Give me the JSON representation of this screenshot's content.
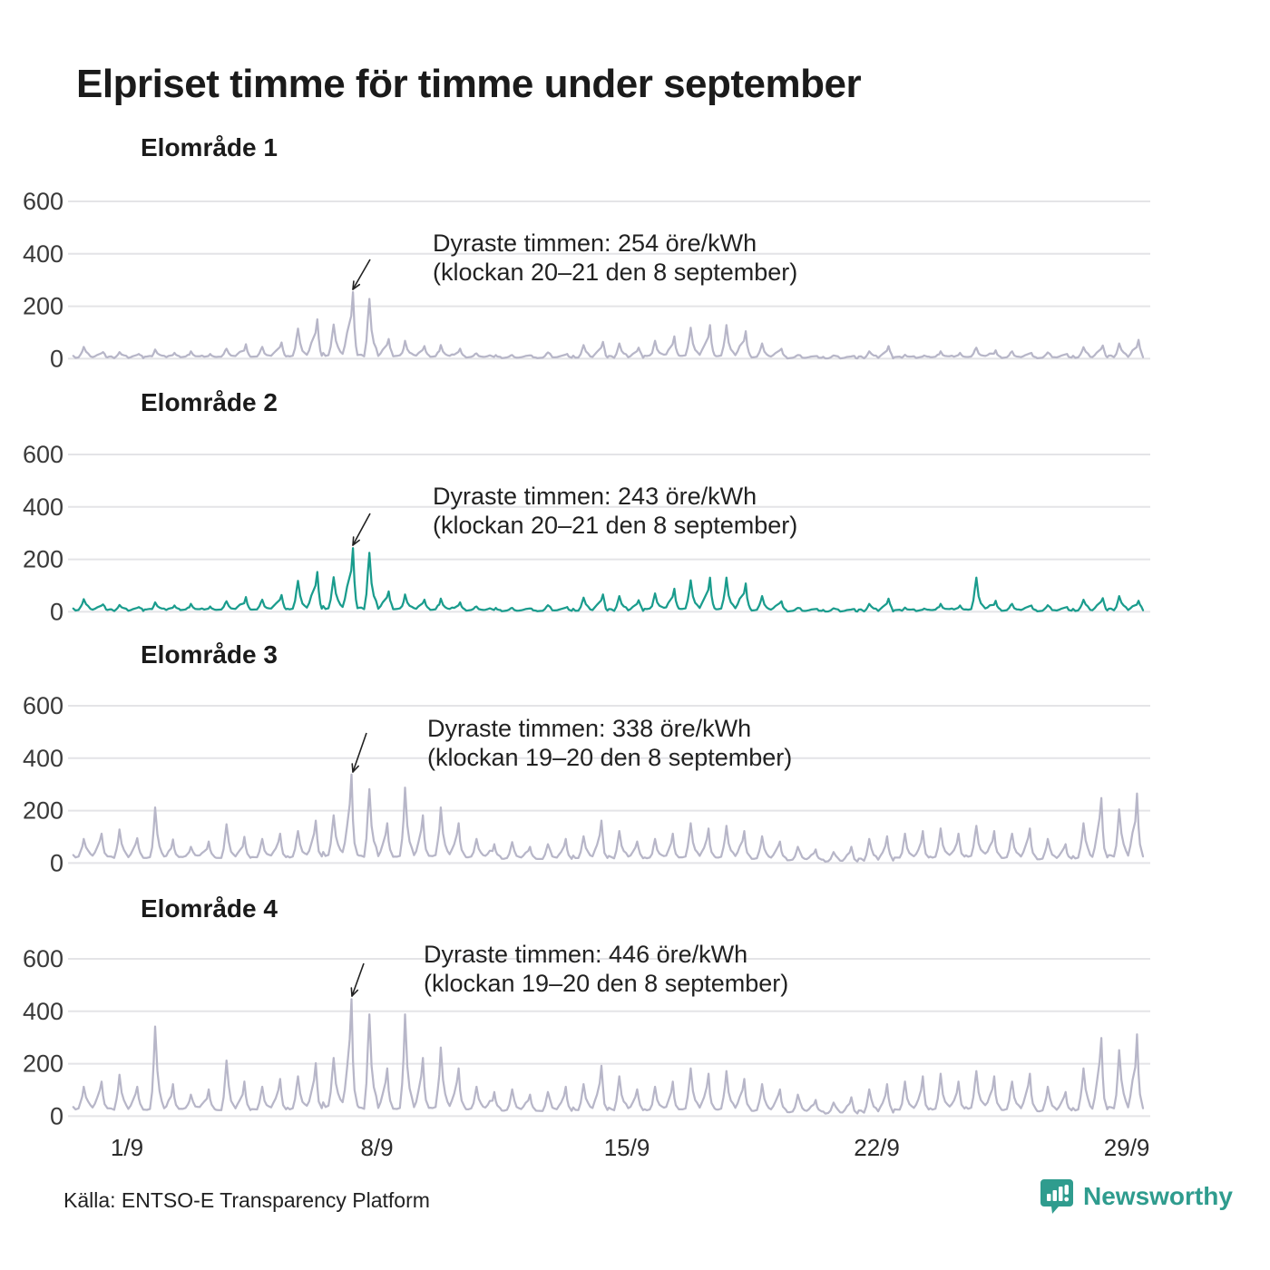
{
  "title": "Elpriset timme för timme under september",
  "source": "Källa: ENTSO-E Transparency Platform",
  "logo": {
    "text": "Newsworthy"
  },
  "colors": {
    "muted_series": "#b7b6c8",
    "accent_series": "#1a9c8d",
    "grid": "#e4e4e7",
    "text": "#1b1b1b",
    "annotation_arrow": "#222222",
    "brand_teal": "#2f9c8e"
  },
  "axis": {
    "y_ticks": [
      "600",
      "400",
      "200",
      "0"
    ],
    "y_max": 600,
    "x_ticks": [
      "1/9",
      "8/9",
      "15/9",
      "22/9",
      "29/9"
    ],
    "x_tick_days": [
      1,
      8,
      15,
      22,
      29
    ],
    "days_shown": 30,
    "unit": "öre/kWh"
  },
  "chart_data": [
    {
      "type": "line",
      "title": "Elområde 1",
      "unit": "öre/kWh",
      "series_color": "#b7b6c8",
      "ylim": [
        0,
        650
      ],
      "x_range": [
        "1/9",
        "30/9"
      ],
      "annotation": {
        "line1": "Dyraste timmen: 254 öre/kWh",
        "line2": "(klockan 20–21 den 8 september)",
        "peak_value": 254,
        "peak_day": 8,
        "peak_hour": "20–21",
        "peak_hour_pos": 20.5
      },
      "daily_base_am_pm": [
        [
          8,
          45,
          25
        ],
        [
          6,
          25,
          18
        ],
        [
          7,
          35,
          22
        ],
        [
          6,
          28,
          18
        ],
        [
          8,
          38,
          55
        ],
        [
          10,
          45,
          62
        ],
        [
          14,
          115,
          150
        ],
        [
          18,
          130,
          254
        ],
        [
          14,
          228,
          75
        ],
        [
          10,
          68,
          48
        ],
        [
          8,
          52,
          38
        ],
        [
          6,
          20,
          14
        ],
        [
          5,
          14,
          12
        ],
        [
          6,
          24,
          18
        ],
        [
          8,
          52,
          64
        ],
        [
          8,
          58,
          42
        ],
        [
          10,
          68,
          85
        ],
        [
          12,
          118,
          128
        ],
        [
          12,
          128,
          105
        ],
        [
          8,
          58,
          38
        ],
        [
          5,
          14,
          10
        ],
        [
          4,
          12,
          10
        ],
        [
          6,
          28,
          48
        ],
        [
          5,
          15,
          12
        ],
        [
          6,
          28,
          22
        ],
        [
          8,
          42,
          32
        ],
        [
          6,
          28,
          22
        ],
        [
          6,
          24,
          18
        ],
        [
          8,
          44,
          50
        ],
        [
          10,
          58,
          72
        ]
      ]
    },
    {
      "type": "line",
      "title": "Elområde 2",
      "unit": "öre/kWh",
      "series_color": "#1a9c8d",
      "ylim": [
        0,
        650
      ],
      "x_range": [
        "1/9",
        "30/9"
      ],
      "annotation": {
        "line1": "Dyraste timmen: 243 öre/kWh",
        "line2": "(klockan 20–21 den 8 september)",
        "peak_value": 243,
        "peak_day": 8,
        "peak_hour": "20–21",
        "peak_hour_pos": 20.5
      },
      "daily_base_am_pm": [
        [
          10,
          48,
          28
        ],
        [
          7,
          26,
          18
        ],
        [
          8,
          36,
          24
        ],
        [
          7,
          30,
          20
        ],
        [
          9,
          40,
          56
        ],
        [
          11,
          46,
          64
        ],
        [
          15,
          118,
          152
        ],
        [
          18,
          132,
          243
        ],
        [
          15,
          225,
          78
        ],
        [
          10,
          66,
          46
        ],
        [
          8,
          50,
          36
        ],
        [
          6,
          20,
          15
        ],
        [
          5,
          15,
          12
        ],
        [
          6,
          25,
          18
        ],
        [
          8,
          54,
          66
        ],
        [
          8,
          60,
          44
        ],
        [
          10,
          70,
          88
        ],
        [
          12,
          120,
          130
        ],
        [
          12,
          130,
          108
        ],
        [
          8,
          60,
          40
        ],
        [
          5,
          15,
          11
        ],
        [
          4,
          13,
          10
        ],
        [
          6,
          30,
          50
        ],
        [
          5,
          16,
          12
        ],
        [
          7,
          30,
          24
        ],
        [
          10,
          130,
          42
        ],
        [
          7,
          30,
          24
        ],
        [
          6,
          25,
          18
        ],
        [
          8,
          46,
          52
        ],
        [
          10,
          60,
          42
        ]
      ]
    },
    {
      "type": "line",
      "title": "Elområde 3",
      "unit": "öre/kWh",
      "series_color": "#b7b6c8",
      "ylim": [
        0,
        650
      ],
      "x_range": [
        "1/9",
        "30/9"
      ],
      "annotation": {
        "line1": "Dyraste timmen: 338 öre/kWh",
        "line2": "(klockan 19–20 den 8 september)",
        "peak_value": 338,
        "peak_day": 8,
        "peak_hour": "19–20",
        "peak_hour_pos": 19.5
      },
      "daily_base_am_pm": [
        [
          30,
          92,
          112
        ],
        [
          25,
          128,
          95
        ],
        [
          20,
          212,
          90
        ],
        [
          25,
          62,
          82
        ],
        [
          22,
          148,
          100
        ],
        [
          26,
          92,
          112
        ],
        [
          30,
          122,
          162
        ],
        [
          38,
          182,
          338
        ],
        [
          30,
          282,
          152
        ],
        [
          26,
          288,
          182
        ],
        [
          30,
          212,
          152
        ],
        [
          25,
          92,
          72
        ],
        [
          20,
          80,
          62
        ],
        [
          20,
          72,
          92
        ],
        [
          25,
          102,
          162
        ],
        [
          25,
          122,
          82
        ],
        [
          20,
          92,
          112
        ],
        [
          25,
          152,
          132
        ],
        [
          25,
          142,
          122
        ],
        [
          20,
          102,
          82
        ],
        [
          15,
          62,
          52
        ],
        [
          10,
          42,
          62
        ],
        [
          15,
          92,
          102
        ],
        [
          20,
          112,
          122
        ],
        [
          25,
          132,
          112
        ],
        [
          30,
          142,
          122
        ],
        [
          25,
          112,
          132
        ],
        [
          20,
          92,
          72
        ],
        [
          25,
          152,
          248
        ],
        [
          30,
          205,
          265
        ]
      ]
    },
    {
      "type": "line",
      "title": "Elområde 4",
      "unit": "öre/kWh",
      "series_color": "#b7b6c8",
      "ylim": [
        0,
        650
      ],
      "x_range": [
        "1/9",
        "30/9"
      ],
      "annotation": {
        "line1": "Dyraste timmen: 446 öre/kWh",
        "line2": "(klockan 19–20 den 8 september)",
        "peak_value": 446,
        "peak_day": 8,
        "peak_hour": "19–20",
        "peak_hour_pos": 19.5
      },
      "daily_base_am_pm": [
        [
          35,
          112,
          132
        ],
        [
          30,
          158,
          112
        ],
        [
          25,
          342,
          122
        ],
        [
          30,
          82,
          102
        ],
        [
          26,
          212,
          132
        ],
        [
          30,
          112,
          142
        ],
        [
          36,
          152,
          202
        ],
        [
          48,
          222,
          446
        ],
        [
          35,
          388,
          182
        ],
        [
          30,
          388,
          222
        ],
        [
          35,
          262,
          182
        ],
        [
          30,
          112,
          92
        ],
        [
          25,
          102,
          82
        ],
        [
          25,
          92,
          112
        ],
        [
          30,
          122,
          192
        ],
        [
          30,
          152,
          102
        ],
        [
          25,
          112,
          132
        ],
        [
          30,
          182,
          162
        ],
        [
          30,
          172,
          142
        ],
        [
          25,
          122,
          102
        ],
        [
          20,
          82,
          62
        ],
        [
          15,
          52,
          72
        ],
        [
          20,
          102,
          122
        ],
        [
          25,
          132,
          152
        ],
        [
          30,
          162,
          132
        ],
        [
          35,
          172,
          152
        ],
        [
          30,
          132,
          162
        ],
        [
          25,
          112,
          92
        ],
        [
          30,
          182,
          298
        ],
        [
          35,
          252,
          312
        ]
      ]
    }
  ]
}
